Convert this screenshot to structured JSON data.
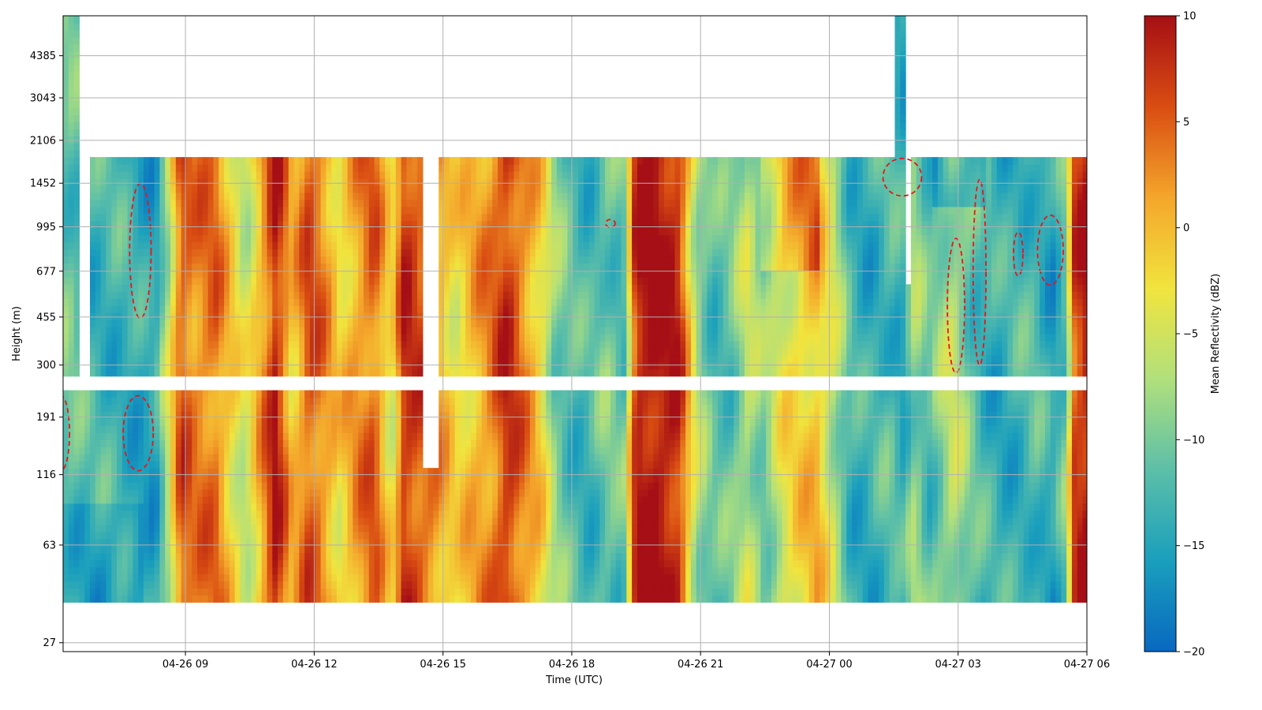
{
  "chart_data": {
    "type": "heatmap",
    "title": "",
    "xlabel": "Time (UTC)",
    "ylabel": "Height (m)",
    "x_ticks": [
      "04-26 09",
      "04-26 12",
      "04-26 15",
      "04-26 18",
      "04-26 21",
      "04-27 00",
      "04-27 03",
      "04-27 06"
    ],
    "x_range": [
      "04-26 06:09",
      "04-27 06:00"
    ],
    "y_ticks": [
      27,
      63,
      116,
      191,
      300,
      455,
      677,
      995,
      1452,
      2106,
      3043,
      4385
    ],
    "y_scale": "log",
    "y_range": [
      25,
      6200
    ],
    "grid": true,
    "colorbar": {
      "label": "Mean Reflectivity (dBZ)",
      "range": [
        -20,
        10
      ],
      "ticks": [
        10,
        5,
        0,
        -5,
        -10,
        -15,
        -20
      ],
      "colormap": "RdYlBu_r",
      "colors": [
        "#0868c0",
        "#1a9fbd",
        "#5cbfa8",
        "#b1e07c",
        "#f1e43e",
        "#f4a62b",
        "#d94d12",
        "#a50f15"
      ]
    },
    "contour": {
      "color": "#e8141c",
      "style": "dashed",
      "level_dbz": -15
    },
    "data_description_hours_since_0600": {
      "column_profiles": [
        {
          "t_start": 0.0,
          "t_end": 0.3,
          "mean_dbz": -11
        },
        {
          "t_start": 0.3,
          "t_end": 1.7,
          "mean_dbz": -13
        },
        {
          "t_start": 1.7,
          "t_end": 2.6,
          "mean_dbz": -15
        },
        {
          "t_start": 2.6,
          "t_end": 4.0,
          "mean_dbz": 5
        },
        {
          "t_start": 4.0,
          "t_end": 6.3,
          "mean_dbz": 2
        },
        {
          "t_start": 6.3,
          "t_end": 8.5,
          "mean_dbz": 4
        },
        {
          "t_start": 8.9,
          "t_end": 11.5,
          "mean_dbz": -1
        },
        {
          "t_start": 11.5,
          "t_end": 13.4,
          "mean_dbz": -11
        },
        {
          "t_start": 13.4,
          "t_end": 14.8,
          "mean_dbz": 10
        },
        {
          "t_start": 14.8,
          "t_end": 16.6,
          "mean_dbz": -11
        },
        {
          "t_start": 16.6,
          "t_end": 18.2,
          "mean_dbz": -4
        },
        {
          "t_start": 18.2,
          "t_end": 20.0,
          "mean_dbz": -13
        },
        {
          "t_start": 20.0,
          "t_end": 23.7,
          "mean_dbz": -9
        },
        {
          "t_start": 23.7,
          "t_end": 24.0,
          "mean_dbz": 9
        }
      ]
    }
  }
}
